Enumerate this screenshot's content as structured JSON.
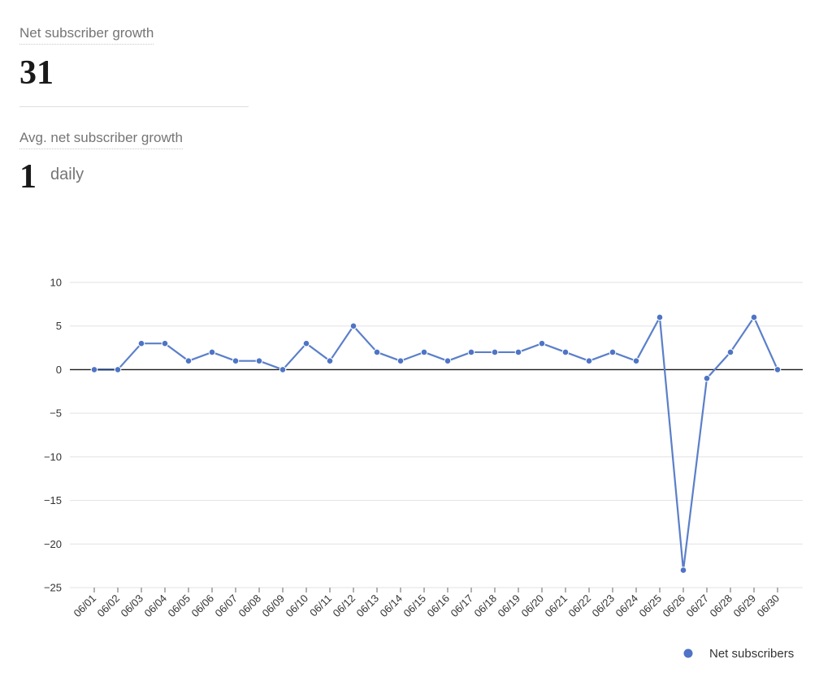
{
  "stats": {
    "net_label": "Net subscriber growth",
    "net_value": "31",
    "avg_label": "Avg. net subscriber growth",
    "avg_value": "1",
    "avg_unit": "daily"
  },
  "chart_data": {
    "type": "line",
    "categories": [
      "06/01",
      "06/02",
      "06/03",
      "06/04",
      "06/05",
      "06/06",
      "06/07",
      "06/08",
      "06/09",
      "06/10",
      "06/11",
      "06/12",
      "06/13",
      "06/14",
      "06/15",
      "06/16",
      "06/17",
      "06/18",
      "06/19",
      "06/20",
      "06/21",
      "06/22",
      "06/23",
      "06/24",
      "06/25",
      "06/26",
      "06/27",
      "06/28",
      "06/29",
      "06/30"
    ],
    "series": [
      {
        "name": "Net subscribers",
        "values": [
          0,
          0,
          3,
          3,
          1,
          2,
          1,
          1,
          0,
          3,
          1,
          5,
          2,
          1,
          2,
          1,
          2,
          2,
          2,
          3,
          2,
          1,
          2,
          1,
          6,
          -23,
          -1,
          2,
          6,
          0
        ]
      }
    ],
    "yticks": [
      10,
      5,
      0,
      -5,
      -10,
      -15,
      -20,
      -25
    ],
    "ylim": [
      -25,
      10
    ],
    "grid": true,
    "legend": "bottom-right",
    "colors": {
      "line": "#5b7fc9",
      "marker": "#4e74c5",
      "zero": "#1a1a1a",
      "grid": "#e2e2e2",
      "first_segment": "#1f3a6e"
    }
  }
}
